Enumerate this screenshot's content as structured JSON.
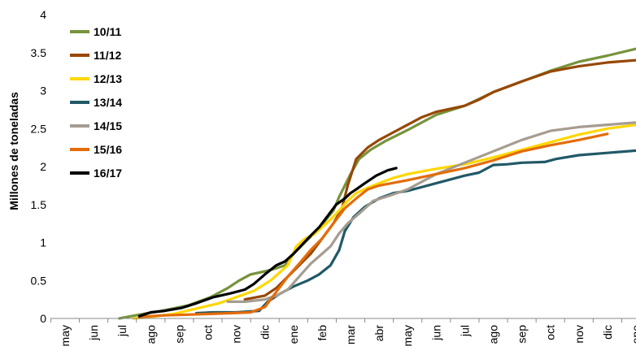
{
  "chart_data": {
    "type": "line",
    "title": "",
    "xlabel": "",
    "ylabel": "Millones de toneladas",
    "ylim": [
      0,
      4
    ],
    "yticks": [
      "0",
      "0.5",
      "1",
      "1.5",
      "2",
      "2.5",
      "3",
      "3.5",
      "4"
    ],
    "x_ticks": [
      "may",
      "jun",
      "jul",
      "ago",
      "sep",
      "oct",
      "nov",
      "dic",
      "ene",
      "feb",
      "mar",
      "abr",
      "may",
      "jun",
      "jul",
      "ago",
      "sep",
      "oct",
      "nov",
      "dic",
      "ene"
    ],
    "grid": false,
    "legend_position": "top-left",
    "series": [
      {
        "name": "10/11",
        "color": "#77933C",
        "x": [
          1.9,
          2.6,
          3.4,
          4.3,
          5.1,
          5.7,
          6.1,
          6.5,
          7.0,
          7.4,
          7.7,
          8.0,
          8.4,
          8.8,
          9.1,
          9.4,
          9.6,
          10.0,
          10.3,
          10.7,
          11.2,
          12.0,
          13.0,
          14.0,
          15.0,
          16.0,
          17.0,
          18.0,
          19.0,
          20.0,
          20.5
        ],
        "y": [
          0,
          0.05,
          0.1,
          0.17,
          0.28,
          0.4,
          0.5,
          0.58,
          0.62,
          0.66,
          0.7,
          0.85,
          1.0,
          1.15,
          1.28,
          1.42,
          1.6,
          1.9,
          2.1,
          2.22,
          2.33,
          2.48,
          2.68,
          2.8,
          2.98,
          3.12,
          3.26,
          3.38,
          3.46,
          3.55,
          3.57
        ]
      },
      {
        "name": "11/12",
        "color": "#974706",
        "x": [
          6.3,
          7.0,
          7.4,
          7.8,
          8.2,
          8.6,
          9.0,
          9.4,
          9.7,
          9.9,
          10.2,
          10.6,
          11.0,
          11.5,
          12.0,
          12.5,
          13.0,
          13.5,
          14.0,
          14.5,
          15.0,
          16.0,
          17.0,
          18.0,
          19.0,
          20.0,
          20.5
        ],
        "y": [
          0.25,
          0.3,
          0.4,
          0.55,
          0.7,
          0.85,
          1.05,
          1.25,
          1.45,
          1.75,
          2.1,
          2.25,
          2.35,
          2.45,
          2.55,
          2.65,
          2.72,
          2.76,
          2.8,
          2.88,
          2.98,
          3.12,
          3.25,
          3.32,
          3.37,
          3.4,
          3.42
        ]
      },
      {
        "name": "12/13",
        "color": "#FFD700",
        "x": [
          2.4,
          3.0,
          3.8,
          4.6,
          5.4,
          6.0,
          6.6,
          7.2,
          7.8,
          8.1,
          8.4,
          8.7,
          9.0,
          9.3,
          9.6,
          9.9,
          10.2,
          10.6,
          11.0,
          11.5,
          12.0,
          13.0,
          14.0,
          15.0,
          16.0,
          17.0,
          18.0,
          19.0,
          20.0,
          20.5
        ],
        "y": [
          0,
          0.02,
          0.06,
          0.13,
          0.2,
          0.28,
          0.36,
          0.5,
          0.7,
          0.95,
          1.05,
          1.1,
          1.2,
          1.3,
          1.42,
          1.55,
          1.65,
          1.72,
          1.78,
          1.85,
          1.9,
          1.97,
          2.03,
          2.12,
          2.22,
          2.32,
          2.42,
          2.5,
          2.55,
          2.62
        ]
      },
      {
        "name": "13/14",
        "color": "#215968",
        "x": [
          4.6,
          5.2,
          6.0,
          6.8,
          7.1,
          7.5,
          8.0,
          8.5,
          8.9,
          9.3,
          9.6,
          9.8,
          10.1,
          10.5,
          11.0,
          11.5,
          12.0,
          13.0,
          14.0,
          14.5,
          15.0,
          15.5,
          16.0,
          16.8,
          17.2,
          18.0,
          19.0,
          20.0,
          20.5
        ],
        "y": [
          0.07,
          0.08,
          0.08,
          0.1,
          0.22,
          0.32,
          0.42,
          0.5,
          0.58,
          0.7,
          0.9,
          1.15,
          1.33,
          1.47,
          1.58,
          1.65,
          1.68,
          1.78,
          1.88,
          1.92,
          2.02,
          2.03,
          2.05,
          2.06,
          2.1,
          2.15,
          2.18,
          2.21,
          2.23
        ]
      },
      {
        "name": "14/15",
        "color": "#A69C91",
        "x": [
          5.7,
          6.3,
          7.0,
          7.4,
          7.8,
          8.2,
          8.6,
          9.0,
          9.3,
          9.6,
          9.9,
          10.3,
          10.8,
          11.4,
          12.0,
          13.0,
          14.0,
          15.0,
          16.0,
          17.0,
          18.0,
          19.0,
          20.0,
          20.5
        ],
        "y": [
          0.22,
          0.22,
          0.25,
          0.3,
          0.38,
          0.55,
          0.72,
          0.85,
          0.95,
          1.12,
          1.25,
          1.38,
          1.55,
          1.62,
          1.7,
          1.9,
          2.05,
          2.2,
          2.35,
          2.47,
          2.52,
          2.55,
          2.58,
          2.65
        ]
      },
      {
        "name": "15/16",
        "color": "#E46C0A",
        "x": [
          2.6,
          3.4,
          4.3,
          5.1,
          5.8,
          6.5,
          7.0,
          7.4,
          7.8,
          8.2,
          8.6,
          9.0,
          9.4,
          9.8,
          10.2,
          10.6,
          11.0,
          12.0,
          13.0,
          14.0,
          15.0,
          16.0,
          17.0,
          18.0,
          19.0
        ],
        "y": [
          0.02,
          0.04,
          0.05,
          0.06,
          0.07,
          0.08,
          0.15,
          0.35,
          0.55,
          0.72,
          0.9,
          1.05,
          1.25,
          1.45,
          1.58,
          1.7,
          1.75,
          1.82,
          1.9,
          1.98,
          2.08,
          2.2,
          2.28,
          2.35,
          2.43
        ]
      },
      {
        "name": "16/17",
        "color": "#000000",
        "x": [
          2.6,
          3.0,
          3.5,
          4.1,
          4.6,
          5.2,
          5.8,
          6.3,
          6.6,
          7.0,
          7.4,
          7.7,
          8.0,
          8.5,
          8.9,
          9.2,
          9.5,
          9.8,
          10.0,
          10.2,
          10.5,
          10.9,
          11.3,
          11.6
        ],
        "y": [
          0.03,
          0.08,
          0.1,
          0.14,
          0.2,
          0.28,
          0.33,
          0.38,
          0.45,
          0.58,
          0.7,
          0.75,
          0.85,
          1.05,
          1.2,
          1.35,
          1.5,
          1.58,
          1.65,
          1.7,
          1.78,
          1.88,
          1.95,
          1.98
        ]
      }
    ]
  }
}
